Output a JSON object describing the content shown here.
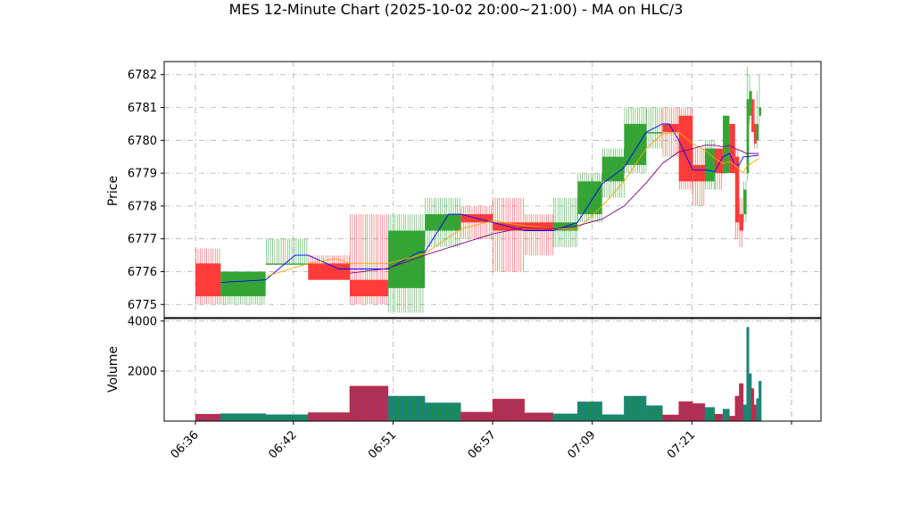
{
  "chart_data": {
    "type": "candlestick",
    "title": "MES 12-Minute Chart (2025-10-02 20:00~21:00) - MA on HLC/3",
    "price_panel": {
      "ylabel": "Price",
      "ylim": [
        6774.6,
        6782.4
      ],
      "yticks": [
        6775,
        6776,
        6777,
        6778,
        6779,
        6780,
        6781,
        6782
      ],
      "grid": true
    },
    "volume_panel": {
      "ylabel": "Volume",
      "ylim": [
        0,
        4100
      ],
      "yticks": [
        2000,
        4000
      ],
      "grid": true
    },
    "x_tick_labels": [
      "06:36",
      "06:42",
      "06:51",
      "06:57",
      "07:09",
      "07:21"
    ],
    "candles": [
      {
        "x": 0.0,
        "w": 1.55,
        "open": 6776.25,
        "high": 6776.7,
        "low": 6775.0,
        "close": 6775.25,
        "volume": 280
      },
      {
        "x": 1.55,
        "w": 2.75,
        "open": 6775.25,
        "high": 6776.0,
        "low": 6775.0,
        "close": 6776.0,
        "volume": 300
      },
      {
        "x": 4.3,
        "w": 2.6,
        "open": 6776.25,
        "high": 6777.0,
        "low": 6776.25,
        "close": 6776.25,
        "volume": 260
      },
      {
        "x": 6.9,
        "w": 2.55,
        "open": 6776.25,
        "high": 6776.5,
        "low": 6775.75,
        "close": 6775.75,
        "volume": 340
      },
      {
        "x": 9.45,
        "w": 2.35,
        "open": 6775.75,
        "high": 6777.75,
        "low": 6775.0,
        "close": 6775.25,
        "volume": 1400
      },
      {
        "x": 11.8,
        "w": 2.25,
        "open": 6775.5,
        "high": 6777.75,
        "low": 6774.75,
        "close": 6777.25,
        "volume": 1000
      },
      {
        "x": 14.05,
        "w": 2.2,
        "open": 6777.25,
        "high": 6778.25,
        "low": 6776.75,
        "close": 6777.75,
        "volume": 730
      },
      {
        "x": 16.25,
        "w": 1.95,
        "open": 6777.75,
        "high": 6778.0,
        "low": 6777.0,
        "close": 6777.5,
        "volume": 360
      },
      {
        "x": 18.2,
        "w": 1.95,
        "open": 6777.5,
        "high": 6778.25,
        "low": 6776.0,
        "close": 6777.25,
        "volume": 880
      },
      {
        "x": 20.15,
        "w": 1.75,
        "open": 6777.5,
        "high": 6777.75,
        "low": 6776.5,
        "close": 6777.25,
        "volume": 330
      },
      {
        "x": 21.9,
        "w": 1.5,
        "open": 6777.25,
        "high": 6778.25,
        "low": 6776.75,
        "close": 6777.5,
        "volume": 290
      },
      {
        "x": 23.4,
        "w": 1.5,
        "open": 6777.75,
        "high": 6779.0,
        "low": 6777.5,
        "close": 6778.75,
        "volume": 770
      },
      {
        "x": 24.9,
        "w": 1.35,
        "open": 6778.75,
        "high": 6779.75,
        "low": 6778.25,
        "close": 6779.5,
        "volume": 260
      },
      {
        "x": 26.25,
        "w": 1.35,
        "open": 6779.25,
        "high": 6781.0,
        "low": 6779.0,
        "close": 6780.5,
        "volume": 1000
      },
      {
        "x": 27.6,
        "w": 1.0,
        "open": 6780.25,
        "high": 6781.0,
        "low": 6779.75,
        "close": 6780.25,
        "volume": 620
      },
      {
        "x": 28.6,
        "w": 1.0,
        "open": 6780.5,
        "high": 6781.0,
        "low": 6779.5,
        "close": 6780.25,
        "volume": 250
      },
      {
        "x": 29.6,
        "w": 0.85,
        "open": 6780.75,
        "high": 6781.0,
        "low": 6778.5,
        "close": 6778.75,
        "volume": 780
      },
      {
        "x": 30.45,
        "w": 0.75,
        "open": 6779.25,
        "high": 6779.75,
        "low": 6778.0,
        "close": 6778.75,
        "volume": 700
      },
      {
        "x": 31.2,
        "w": 0.6,
        "open": 6778.75,
        "high": 6780.0,
        "low": 6778.5,
        "close": 6779.75,
        "volume": 550
      },
      {
        "x": 31.8,
        "w": 0.5,
        "open": 6779.75,
        "high": 6779.75,
        "low": 6778.5,
        "close": 6779.0,
        "volume": 280
      },
      {
        "x": 32.3,
        "w": 0.4,
        "open": 6779.0,
        "high": 6780.75,
        "low": 6779.0,
        "close": 6780.75,
        "volume": 480
      },
      {
        "x": 32.7,
        "w": 0.35,
        "open": 6780.5,
        "high": 6780.5,
        "low": 6779.0,
        "close": 6779.0,
        "volume": 200
      },
      {
        "x": 33.05,
        "w": 0.25,
        "open": 6779.5,
        "high": 6779.75,
        "low": 6777.0,
        "close": 6777.5,
        "volume": 1000
      },
      {
        "x": 33.3,
        "w": 0.25,
        "open": 6777.75,
        "high": 6778.25,
        "low": 6776.75,
        "close": 6777.25,
        "volume": 1500
      },
      {
        "x": 33.55,
        "w": 0.2,
        "open": 6777.75,
        "high": 6778.75,
        "low": 6777.5,
        "close": 6778.5,
        "volume": 650
      },
      {
        "x": 33.75,
        "w": 0.15,
        "open": 6779.0,
        "high": 6782.25,
        "low": 6778.75,
        "close": 6781.25,
        "volume": 3750
      },
      {
        "x": 33.9,
        "w": 0.15,
        "open": 6780.75,
        "high": 6782.0,
        "low": 6780.5,
        "close": 6781.5,
        "volume": 1900
      },
      {
        "x": 34.05,
        "w": 0.15,
        "open": 6781.25,
        "high": 6781.5,
        "low": 6780.25,
        "close": 6780.25,
        "volume": 1300
      },
      {
        "x": 34.2,
        "w": 0.15,
        "open": 6780.5,
        "high": 6781.25,
        "low": 6779.75,
        "close": 6779.9,
        "volume": 650
      },
      {
        "x": 34.35,
        "w": 0.15,
        "open": 6780.0,
        "high": 6781.5,
        "low": 6779.75,
        "close": 6780.5,
        "volume": 900
      },
      {
        "x": 34.5,
        "w": 0.15,
        "open": 6780.75,
        "high": 6782.0,
        "low": 6780.5,
        "close": 6781.0,
        "volume": 1600
      }
    ],
    "ma_series": [
      {
        "color": "#0000ff",
        "points": [
          [
            1.55,
            6775.67
          ],
          [
            4.3,
            6775.75
          ],
          [
            6.1,
            6776.5
          ],
          [
            6.9,
            6776.5
          ],
          [
            8.8,
            6776.08
          ],
          [
            9.45,
            6776.08
          ],
          [
            11.8,
            6776.08
          ],
          [
            13.7,
            6776.6
          ],
          [
            14.05,
            6776.6
          ],
          [
            15.5,
            6777.75
          ],
          [
            16.25,
            6777.75
          ],
          [
            18.2,
            6777.5
          ],
          [
            20.15,
            6777.25
          ],
          [
            21.9,
            6777.25
          ],
          [
            23.4,
            6777.5
          ],
          [
            24.9,
            6778.67
          ],
          [
            26.25,
            6779.17
          ],
          [
            27.6,
            6780.25
          ],
          [
            28.6,
            6780.5
          ],
          [
            29.0,
            6780.5
          ],
          [
            29.6,
            6780.0
          ],
          [
            30.45,
            6779.1
          ],
          [
            31.2,
            6779.1
          ],
          [
            31.8,
            6779.05
          ],
          [
            32.3,
            6779.5
          ],
          [
            32.7,
            6779.6
          ],
          [
            33.05,
            6779.25
          ],
          [
            33.3,
            6779.25
          ],
          [
            33.55,
            6779.5
          ],
          [
            33.75,
            6779.5
          ],
          [
            34.5,
            6779.55
          ]
        ]
      },
      {
        "color": "#ffa500",
        "points": [
          [
            4.3,
            6775.85
          ],
          [
            6.9,
            6776.25
          ],
          [
            8.6,
            6776.4
          ],
          [
            9.45,
            6776.25
          ],
          [
            11.8,
            6776.25
          ],
          [
            14.05,
            6776.55
          ],
          [
            16.25,
            6777.3
          ],
          [
            18.2,
            6777.55
          ],
          [
            20.15,
            6777.4
          ],
          [
            21.9,
            6777.3
          ],
          [
            23.4,
            6777.3
          ],
          [
            24.9,
            6778.0
          ],
          [
            26.25,
            6778.75
          ],
          [
            27.6,
            6779.75
          ],
          [
            28.6,
            6780.2
          ],
          [
            29.6,
            6780.25
          ],
          [
            30.45,
            6779.9
          ],
          [
            31.2,
            6779.7
          ],
          [
            31.8,
            6779.45
          ],
          [
            32.3,
            6779.3
          ],
          [
            32.7,
            6779.35
          ],
          [
            33.05,
            6779.25
          ],
          [
            33.3,
            6779.1
          ],
          [
            33.55,
            6779.0
          ],
          [
            33.75,
            6779.2
          ],
          [
            34.5,
            6779.45
          ]
        ]
      },
      {
        "color": "#800080",
        "points": [
          [
            9.45,
            6775.95
          ],
          [
            11.8,
            6776.1
          ],
          [
            14.05,
            6776.5
          ],
          [
            16.25,
            6776.85
          ],
          [
            18.2,
            6777.15
          ],
          [
            20.15,
            6777.35
          ],
          [
            21.9,
            6777.3
          ],
          [
            23.4,
            6777.4
          ],
          [
            24.9,
            6777.6
          ],
          [
            26.25,
            6778.0
          ],
          [
            27.6,
            6778.7
          ],
          [
            28.6,
            6779.3
          ],
          [
            29.6,
            6779.65
          ],
          [
            30.45,
            6779.75
          ],
          [
            31.2,
            6779.85
          ],
          [
            31.8,
            6779.85
          ],
          [
            32.3,
            6779.8
          ],
          [
            32.7,
            6779.85
          ],
          [
            33.05,
            6779.75
          ],
          [
            33.3,
            6779.7
          ],
          [
            33.55,
            6779.65
          ],
          [
            33.75,
            6779.6
          ],
          [
            34.5,
            6779.6
          ]
        ]
      }
    ],
    "colors": {
      "up": "#2ca02c",
      "down": "#ff3333",
      "grid": "#b0b0b0",
      "vol_up": "#1f77b4",
      "vol_down": "#d62728"
    }
  }
}
